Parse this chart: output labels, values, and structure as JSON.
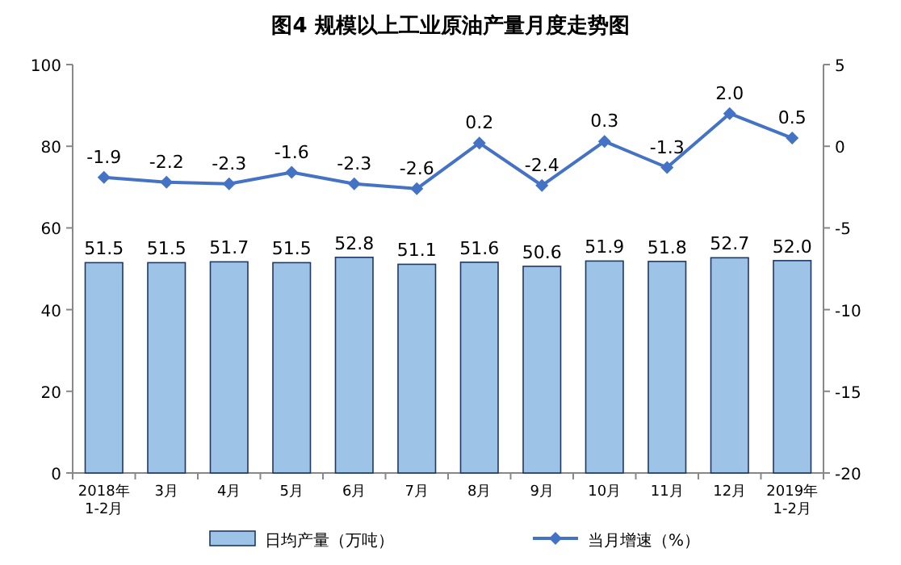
{
  "chart_data": {
    "type": "bar",
    "title": "图4  规模以上工业原油产量月度走势图",
    "categories": [
      "2018年\n1-2月",
      "3月",
      "4月",
      "5月",
      "6月",
      "7月",
      "8月",
      "9月",
      "10月",
      "11月",
      "12月",
      "2019年\n1-2月"
    ],
    "series": [
      {
        "name": "日均产量（万吨）",
        "color": "#9dc3e6",
        "values": [
          51.5,
          51.5,
          51.7,
          51.5,
          52.8,
          51.1,
          51.6,
          50.6,
          51.9,
          51.8,
          52.7,
          52.0
        ],
        "value_labels": [
          "51.5",
          "51.5",
          "51.7",
          "51.5",
          "52.8",
          "51.1",
          "51.6",
          "50.6",
          "51.9",
          "51.8",
          "52.7",
          "52.0"
        ]
      },
      {
        "name": "当月增速（%）",
        "type": "line",
        "axis": "y2",
        "color": "#4472c4",
        "marker": "diamond",
        "values": [
          -1.9,
          -2.2,
          -2.3,
          -1.6,
          -2.3,
          -2.6,
          0.2,
          -2.4,
          0.3,
          -1.3,
          2.0,
          0.5
        ],
        "value_labels": [
          "-1.9",
          "-2.2",
          "-2.3",
          "-1.6",
          "-2.3",
          "-2.6",
          "0.2",
          "-2.4",
          "0.3",
          "-1.3",
          "2.0",
          "0.5"
        ]
      }
    ],
    "ylim": [
      0,
      100
    ],
    "yticks": [
      0,
      20,
      40,
      60,
      80,
      100
    ],
    "y2lim": [
      -20,
      5
    ],
    "y2ticks": [
      -20,
      -15,
      -10,
      -5,
      0,
      5
    ],
    "legend": "bottom"
  }
}
